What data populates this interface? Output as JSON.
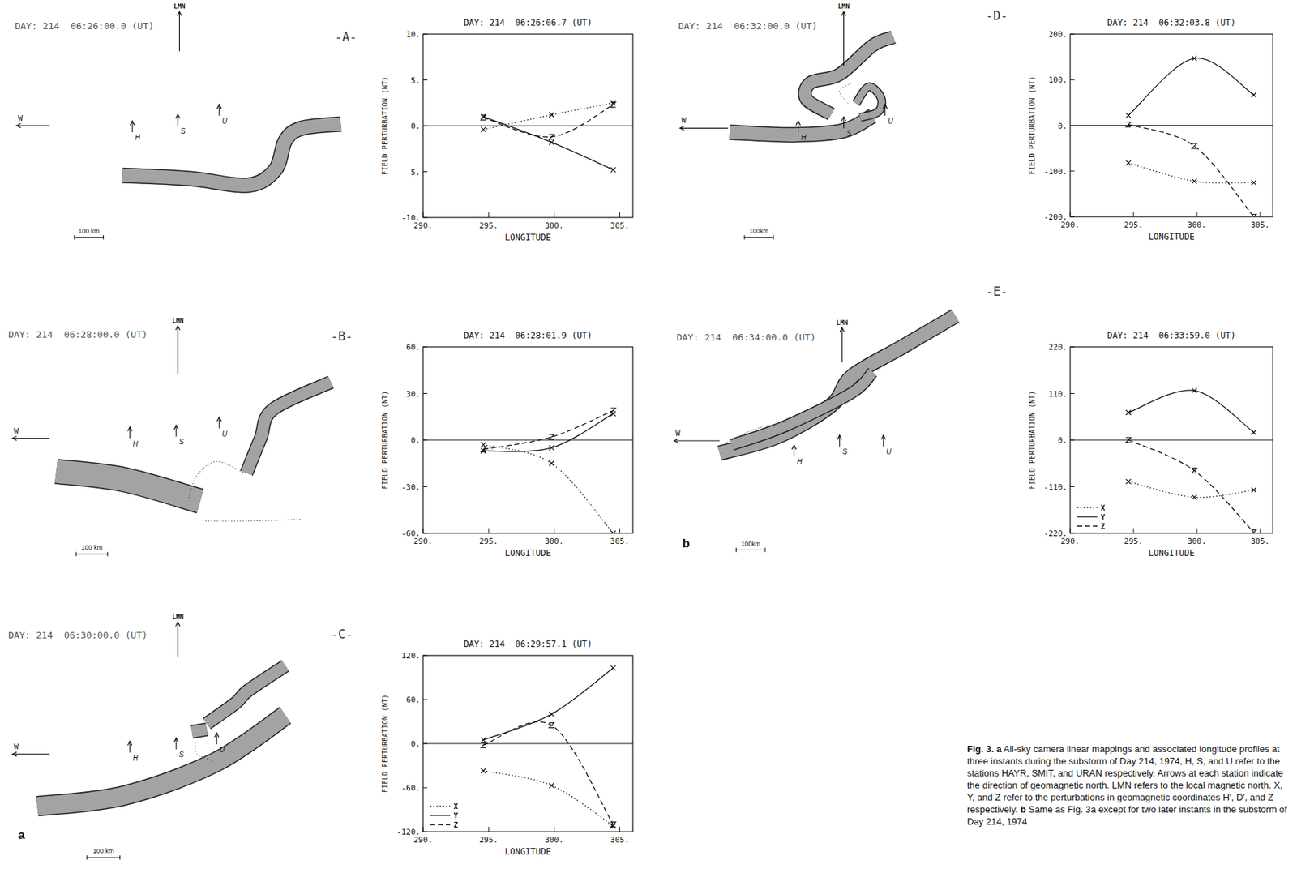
{
  "chart_data": [
    {
      "type": "line",
      "title": "DAY: 214  06:26:06.7 (UT)",
      "x_label": "LONGITUDE",
      "y_label": "FIELD PERTURBATION (NT)",
      "x": [
        294.6,
        299.8,
        304.5
      ],
      "xlim": [
        290,
        306
      ],
      "xticks": [
        {
          "value": 290,
          "label": "290."
        },
        {
          "value": 295,
          "label": "295."
        },
        {
          "value": 300,
          "label": "300."
        },
        {
          "value": 305,
          "label": "305."
        }
      ],
      "ylim": [
        -10,
        10
      ],
      "yticks": [
        {
          "value": -10,
          "label": "-10."
        },
        {
          "value": -5,
          "label": "-5."
        },
        {
          "value": 0,
          "label": "0."
        },
        {
          "value": 5,
          "label": "5."
        },
        {
          "value": 10,
          "label": "10."
        }
      ],
      "series": [
        {
          "name": "X",
          "color": "#111111",
          "line_style": "dotted",
          "marker": "x",
          "values": [
            -0.4,
            1.2,
            2.5
          ]
        },
        {
          "name": "Y",
          "color": "#111111",
          "line_style": "solid",
          "marker": "x",
          "values": [
            1.0,
            -1.8,
            -4.8
          ]
        },
        {
          "name": "Z",
          "color": "#111111",
          "line_style": "dashed",
          "marker": "z",
          "values": [
            0.9,
            -1.2,
            2.3
          ]
        }
      ]
    },
    {
      "type": "line",
      "title": "DAY: 214  06:28:01.9 (UT)",
      "x_label": "LONGITUDE",
      "y_label": "FIELD PERTURBATION (NT)",
      "x": [
        294.6,
        299.8,
        304.5
      ],
      "xlim": [
        290,
        306
      ],
      "xticks": [
        {
          "value": 290,
          "label": "290."
        },
        {
          "value": 295,
          "label": "295."
        },
        {
          "value": 300,
          "label": "300."
        },
        {
          "value": 305,
          "label": "305."
        }
      ],
      "ylim": [
        -60,
        60
      ],
      "yticks": [
        {
          "value": -60,
          "label": "-60."
        },
        {
          "value": -30,
          "label": "-30."
        },
        {
          "value": 0,
          "label": "0."
        },
        {
          "value": 30,
          "label": "30."
        },
        {
          "value": 60,
          "label": "60."
        }
      ],
      "series": [
        {
          "name": "X",
          "color": "#111111",
          "line_style": "dotted",
          "marker": "x",
          "values": [
            -3,
            -15,
            -60
          ]
        },
        {
          "name": "Y",
          "color": "#111111",
          "line_style": "solid",
          "marker": "x",
          "values": [
            -7,
            -5,
            17
          ]
        },
        {
          "name": "Z",
          "color": "#111111",
          "line_style": "dashed",
          "marker": "z",
          "values": [
            -6,
            2,
            19
          ]
        }
      ]
    },
    {
      "type": "line",
      "title": "DAY: 214  06:29:57.1 (UT)",
      "x_label": "LONGITUDE",
      "y_label": "FIELD PERTURBATION (NT)",
      "x": [
        294.6,
        299.8,
        304.5
      ],
      "xlim": [
        290,
        306
      ],
      "xticks": [
        {
          "value": 290,
          "label": "290."
        },
        {
          "value": 295,
          "label": "295."
        },
        {
          "value": 300,
          "label": "300."
        },
        {
          "value": 305,
          "label": "305."
        }
      ],
      "ylim": [
        -120,
        120
      ],
      "yticks": [
        {
          "value": -120,
          "label": "-120."
        },
        {
          "value": -60,
          "label": "-60."
        },
        {
          "value": 0,
          "label": "0."
        },
        {
          "value": 60,
          "label": "60."
        },
        {
          "value": 120,
          "label": "120."
        }
      ],
      "legend": "lower left",
      "series": [
        {
          "name": "X",
          "color": "#111111",
          "line_style": "dotted",
          "marker": "x",
          "values": [
            -37,
            -57,
            -112
          ]
        },
        {
          "name": "Y",
          "color": "#111111",
          "line_style": "solid",
          "marker": "x",
          "values": [
            5,
            40,
            103
          ]
        },
        {
          "name": "Z",
          "color": "#111111",
          "line_style": "dashed",
          "marker": "z",
          "values": [
            -2,
            25,
            -110
          ]
        }
      ]
    },
    {
      "type": "line",
      "title": "DAY: 214  06:32:03.8 (UT)",
      "x_label": "LONGITUDE",
      "y_label": "FIELD PERTURBATION (NT)",
      "x": [
        294.6,
        299.8,
        304.5
      ],
      "xlim": [
        290,
        306
      ],
      "xticks": [
        {
          "value": 290,
          "label": "290."
        },
        {
          "value": 295,
          "label": "295."
        },
        {
          "value": 300,
          "label": "300."
        },
        {
          "value": 305,
          "label": "305."
        }
      ],
      "ylim": [
        -200,
        200
      ],
      "yticks": [
        {
          "value": -200,
          "label": "-200."
        },
        {
          "value": -100,
          "label": "-100."
        },
        {
          "value": 0,
          "label": "0."
        },
        {
          "value": 100,
          "label": "100."
        },
        {
          "value": 200,
          "label": "200."
        }
      ],
      "series": [
        {
          "name": "X",
          "color": "#111111",
          "line_style": "dotted",
          "marker": "x",
          "values": [
            -82,
            -122,
            -125
          ]
        },
        {
          "name": "Y",
          "color": "#111111",
          "line_style": "solid",
          "marker": "x",
          "values": [
            22,
            147,
            67
          ]
        },
        {
          "name": "Z",
          "color": "#111111",
          "line_style": "dashed",
          "marker": "z",
          "values": [
            2,
            -45,
            -200
          ]
        }
      ]
    },
    {
      "type": "line",
      "title": "DAY: 214  06:33:59.0 (UT)",
      "x_label": "LONGITUDE",
      "y_label": "FIELD PERTURBATION (NT)",
      "x": [
        294.6,
        299.8,
        304.5
      ],
      "xlim": [
        290,
        306
      ],
      "xticks": [
        {
          "value": 290,
          "label": "290."
        },
        {
          "value": 295,
          "label": "295."
        },
        {
          "value": 300,
          "label": "300."
        },
        {
          "value": 305,
          "label": "305."
        }
      ],
      "ylim": [
        -220,
        220
      ],
      "yticks": [
        {
          "value": -220,
          "label": "-220."
        },
        {
          "value": -110,
          "label": "-110."
        },
        {
          "value": 0,
          "label": "0."
        },
        {
          "value": 110,
          "label": "110."
        },
        {
          "value": 220,
          "label": "220."
        }
      ],
      "legend": "lower left",
      "series": [
        {
          "name": "X",
          "color": "#111111",
          "line_style": "dotted",
          "marker": "x",
          "values": [
            -98,
            -135,
            -118
          ]
        },
        {
          "name": "Y",
          "color": "#111111",
          "line_style": "solid",
          "marker": "x",
          "values": [
            65,
            117,
            18
          ]
        },
        {
          "name": "Z",
          "color": "#111111",
          "line_style": "dashed",
          "marker": "z",
          "values": [
            0,
            -72,
            -218
          ]
        }
      ]
    }
  ],
  "maps": [
    {
      "panel": "-A-",
      "title": "DAY: 214  06:26:00.0 (UT)",
      "north": "LMN",
      "west": "W",
      "stations": [
        "H",
        "S",
        "U"
      ],
      "scale": "100 km"
    },
    {
      "panel": "-B-",
      "title": "DAY: 214  06:28:00.0 (UT)",
      "north": "LMN",
      "west": "W",
      "stations": [
        "H",
        "S",
        "U"
      ],
      "scale": "100 km"
    },
    {
      "panel": "-C-",
      "title": "DAY: 214  06:30:00.0 (UT)",
      "north": "LMN",
      "west": "W",
      "stations": [
        "H",
        "S",
        "U"
      ],
      "scale": "100 km",
      "part": "a"
    },
    {
      "panel": "-D-",
      "title": "DAY: 214  06:32:00.0 (UT)",
      "north": "LMN",
      "west": "W",
      "stations": [
        "H",
        "S",
        "U"
      ],
      "scale": "100km"
    },
    {
      "panel": "-E-",
      "title": "DAY: 214  06:34:00.0 (UT)",
      "north": "LMN",
      "west": "W",
      "stations": [
        "H",
        "S",
        "U"
      ],
      "scale": "100km",
      "part": "b"
    }
  ],
  "caption": [
    {
      "text": "Fig. 3. a",
      "style": "bold"
    },
    {
      "text": " All-sky camera linear mappings and associated longitude profiles at three instants during the substorm of Day 214, 1974, H, S, and U refer to the stations HAYR, SMIT, and URAN respectively. Arrows at each station indicate the direction of geomagnetic north. LMN refers to the local magnetic north. X, Y, and Z refer to the perturbations in geomagnetic coordinates H′, D′, and Z respectively. ",
      "style": "normal"
    },
    {
      "text": "b",
      "style": "bold"
    },
    {
      "text": " Same as Fig. 3a except for two later instants in the substorm of Day 214, 1974",
      "style": "normal"
    }
  ]
}
